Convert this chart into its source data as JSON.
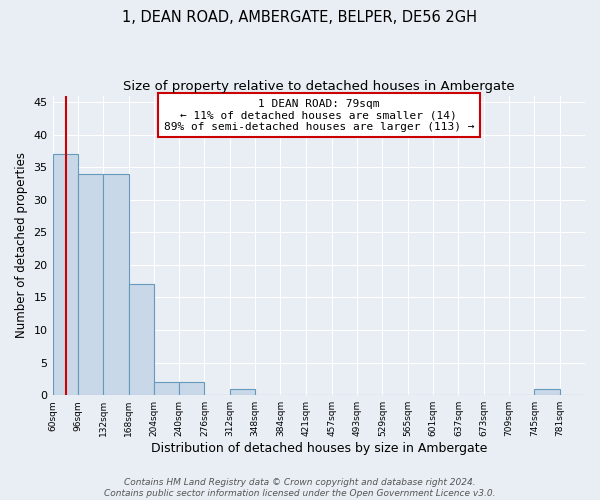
{
  "title1": "1, DEAN ROAD, AMBERGATE, BELPER, DE56 2GH",
  "title2": "Size of property relative to detached houses in Ambergate",
  "xlabel": "Distribution of detached houses by size in Ambergate",
  "ylabel": "Number of detached properties",
  "bin_labels": [
    "60sqm",
    "96sqm",
    "132sqm",
    "168sqm",
    "204sqm",
    "240sqm",
    "276sqm",
    "312sqm",
    "348sqm",
    "384sqm",
    "421sqm",
    "457sqm",
    "493sqm",
    "529sqm",
    "565sqm",
    "601sqm",
    "637sqm",
    "673sqm",
    "709sqm",
    "745sqm",
    "781sqm"
  ],
  "bin_edges": [
    60,
    96,
    132,
    168,
    204,
    240,
    276,
    312,
    348,
    384,
    421,
    457,
    493,
    529,
    565,
    601,
    637,
    673,
    709,
    745,
    781,
    817
  ],
  "counts": [
    37,
    34,
    34,
    17,
    2,
    2,
    0,
    1,
    0,
    0,
    0,
    0,
    0,
    0,
    0,
    0,
    0,
    0,
    0,
    1,
    0
  ],
  "bar_color": "#c8d8e8",
  "bar_edge_color": "#6699bb",
  "vline_x": 79,
  "vline_color": "#cc0000",
  "annotation_line1": "1 DEAN ROAD: 79sqm",
  "annotation_line2": "← 11% of detached houses are smaller (14)",
  "annotation_line3": "89% of semi-detached houses are larger (113) →",
  "annotation_box_color": "#ffffff",
  "annotation_border_color": "#cc0000",
  "ylim": [
    0,
    46
  ],
  "yticks": [
    0,
    5,
    10,
    15,
    20,
    25,
    30,
    35,
    40,
    45
  ],
  "footnote1": "Contains HM Land Registry data © Crown copyright and database right 2024.",
  "footnote2": "Contains public sector information licensed under the Open Government Licence v3.0.",
  "bg_color": "#e8eef4",
  "plot_bg_color": "#e8eef4",
  "grid_color": "#ffffff",
  "title1_fontsize": 10.5,
  "title2_fontsize": 9.5,
  "xlabel_fontsize": 9,
  "ylabel_fontsize": 8.5,
  "annotation_fontsize": 8,
  "footnote_fontsize": 6.5
}
